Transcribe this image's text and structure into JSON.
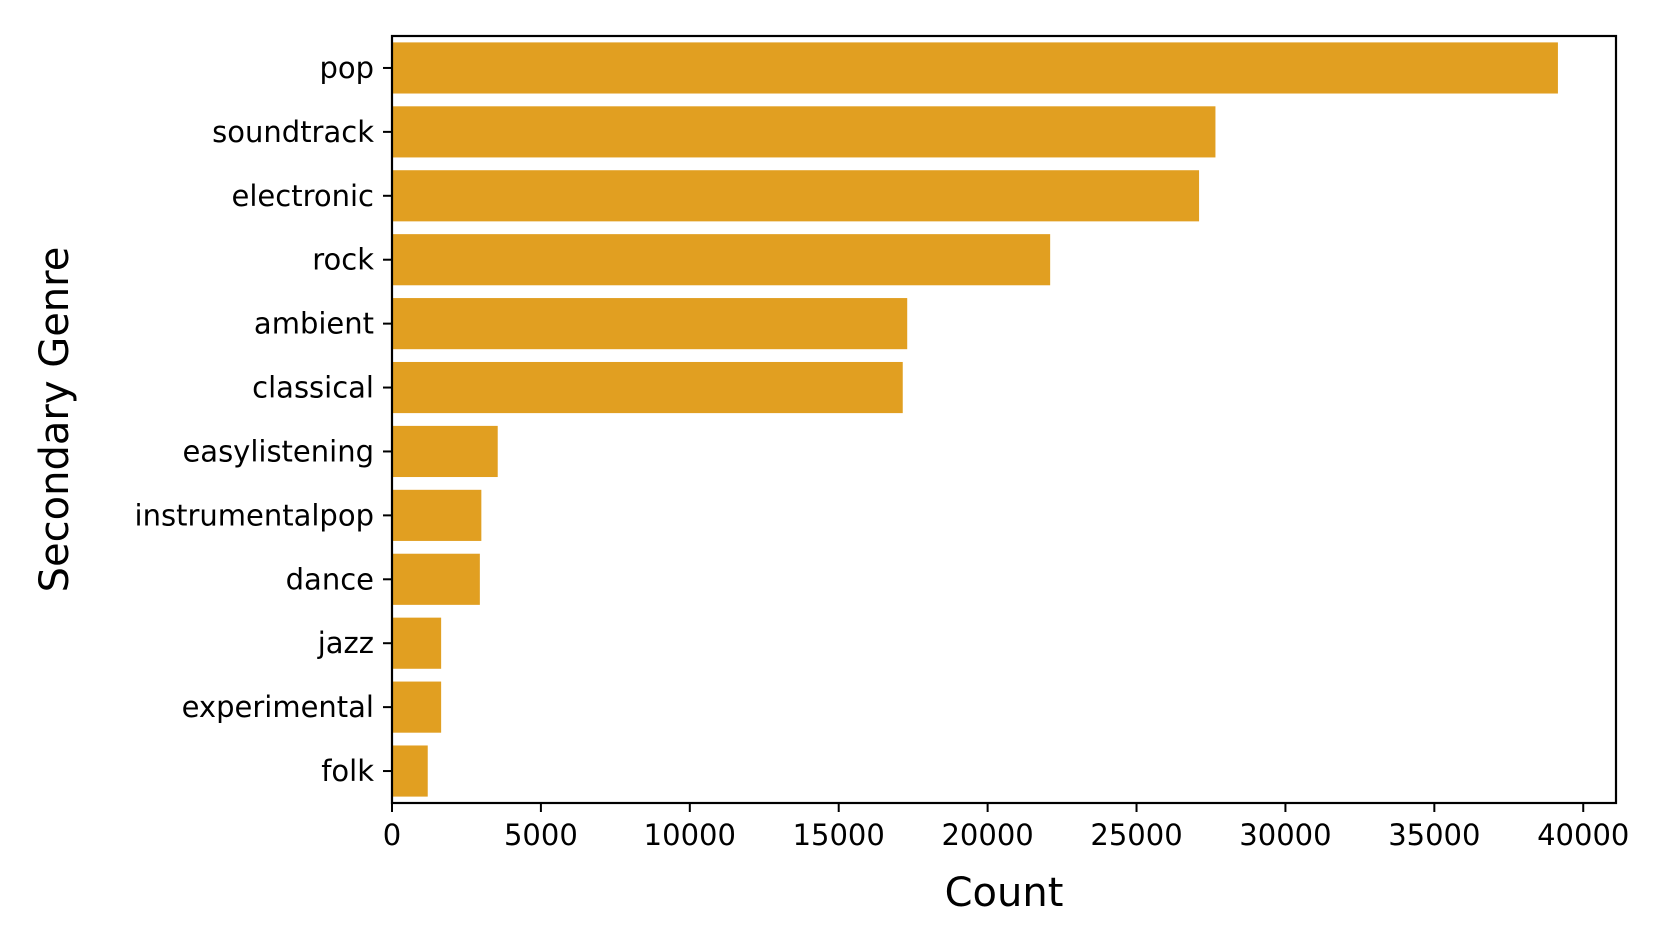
{
  "chart_data": {
    "type": "bar",
    "orientation": "horizontal",
    "title": "",
    "xlabel": "Count",
    "ylabel": "Secondary Genre",
    "categories": [
      "pop",
      "soundtrack",
      "electronic",
      "rock",
      "ambient",
      "classical",
      "easylistening",
      "instrumentalpop",
      "dance",
      "jazz",
      "experimental",
      "folk"
    ],
    "values": [
      39150,
      27650,
      27100,
      22100,
      17300,
      17150,
      3550,
      3000,
      2950,
      1650,
      1650,
      1200
    ],
    "xlim": [
      0,
      41100
    ],
    "xticks": [
      0,
      5000,
      10000,
      15000,
      20000,
      25000,
      30000,
      35000,
      40000
    ],
    "grid": false,
    "bar_color": "#e19f21"
  }
}
